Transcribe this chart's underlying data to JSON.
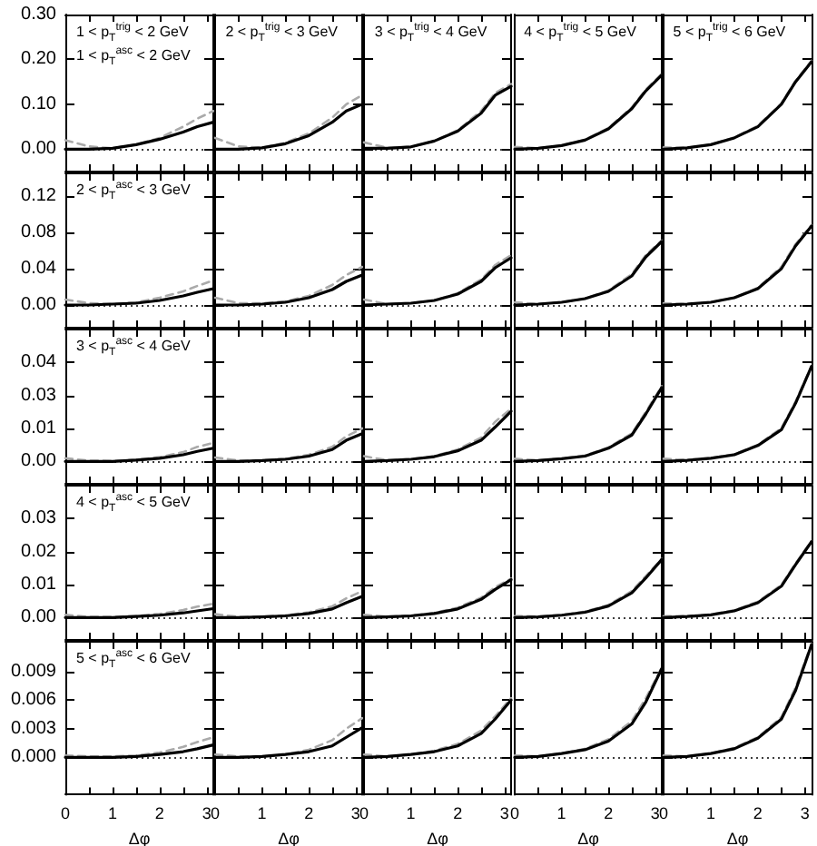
{
  "chart_data": [
    {
      "type": "line",
      "annotations": [
        "1 < p$_{T}$$^{trig}$ < 2 GeV",
        "1 < p$_{T}$$^{asc}$ < 2 GeV"
      ],
      "tick_labels": "y",
      "marker": "none",
      "line_style": "solid",
      "x": [
        0,
        0.5,
        1,
        1.5,
        2,
        2.5,
        2.8,
        3.14
      ],
      "xlim": [
        0,
        3.14
      ],
      "xticks": [
        0,
        0.5,
        1,
        1.5,
        2,
        2.5,
        3
      ],
      "ylim": [
        -0.05,
        0.3
      ],
      "yticks": [
        {
          "value": 0,
          "label": "0.00"
        },
        {
          "value": 0.1,
          "label": "0.10"
        },
        {
          "value": 0.2,
          "label": "0.20"
        },
        {
          "value": 0.3,
          "label": "0.30"
        }
      ],
      "ref_lines": [
        {
          "axis": "y",
          "value": 0,
          "line_style": "dotted"
        }
      ],
      "series": [
        {
          "color": "#aaaaaa",
          "line_style": "dashed",
          "values": [
            0.02,
            0.006,
            0.002,
            0.01,
            0.025,
            0.05,
            0.068,
            0.085
          ]
        },
        {
          "color": "#000000",
          "values": [
            0,
            0,
            0.002,
            0.01,
            0.022,
            0.038,
            0.05,
            0.06
          ]
        }
      ]
    },
    {
      "type": "line",
      "annotations": [
        "2 < p$_{T}$$^{trig}$ < 3 GeV"
      ],
      "tick_labels": false,
      "marker": "none",
      "line_style": "solid",
      "x": [
        0,
        0.5,
        1,
        1.5,
        2,
        2.5,
        2.8,
        3.14
      ],
      "xlim": [
        0,
        3.14
      ],
      "xticks": [
        0,
        0.5,
        1,
        1.5,
        2,
        2.5,
        3
      ],
      "ylim": [
        -0.05,
        0.3
      ],
      "yticks": [
        0,
        0.1,
        0.2,
        0.3
      ],
      "ref_lines": [
        {
          "axis": "y",
          "value": 0,
          "line_style": "dotted"
        }
      ],
      "series": [
        {
          "color": "#aaaaaa",
          "line_style": "dashed",
          "values": [
            0.025,
            0.006,
            0.003,
            0.014,
            0.035,
            0.07,
            0.1,
            0.12
          ]
        },
        {
          "color": "#000000",
          "values": [
            0,
            0,
            0.003,
            0.012,
            0.03,
            0.06,
            0.085,
            0.1
          ]
        }
      ]
    },
    {
      "type": "line",
      "annotations": [
        "3 < p$_{T}$$^{trig}$ < 4 GeV"
      ],
      "tick_labels": false,
      "marker": "none",
      "line_style": "solid",
      "x": [
        0,
        0.5,
        1,
        1.5,
        2,
        2.5,
        2.8,
        3.14
      ],
      "xlim": [
        0,
        3.14
      ],
      "xticks": [
        0,
        0.5,
        1,
        1.5,
        2,
        2.5,
        3
      ],
      "ylim": [
        -0.05,
        0.3
      ],
      "yticks": [
        0,
        0.1,
        0.2,
        0.3
      ],
      "ref_lines": [
        {
          "axis": "y",
          "value": 0,
          "line_style": "dotted"
        }
      ],
      "series": [
        {
          "color": "#aaaaaa",
          "line_style": "dashed",
          "values": [
            0.015,
            0.003,
            0.005,
            0.018,
            0.042,
            0.085,
            0.125,
            0.145
          ]
        },
        {
          "color": "#000000",
          "values": [
            0.002,
            0.002,
            0.005,
            0.018,
            0.04,
            0.08,
            0.12,
            0.14
          ]
        }
      ]
    },
    {
      "type": "line",
      "annotations": [
        "4 < p$_{T}$$^{trig}$ < 5 GeV"
      ],
      "tick_labels": false,
      "marker": "none",
      "line_style": "solid",
      "x": [
        0,
        0.5,
        1,
        1.5,
        2,
        2.5,
        2.8,
        3.14
      ],
      "xlim": [
        0,
        3.14
      ],
      "xticks": [
        0,
        0.5,
        1,
        1.5,
        2,
        2.5,
        3
      ],
      "ylim": [
        -0.05,
        0.3
      ],
      "yticks": [
        0,
        0.1,
        0.2,
        0.3
      ],
      "ref_lines": [
        {
          "axis": "y",
          "value": 0,
          "line_style": "dotted"
        }
      ],
      "series": [
        {
          "color": "#aaaaaa",
          "line_style": "dashed",
          "values": [
            0.005,
            0.002,
            0.008,
            0.021,
            0.047,
            0.093,
            0.133,
            0.168
          ]
        },
        {
          "color": "#000000",
          "values": [
            0,
            0.002,
            0.008,
            0.02,
            0.045,
            0.09,
            0.13,
            0.165
          ]
        }
      ]
    },
    {
      "type": "line",
      "annotations": [
        "5 < p$_{T}$$^{trig}$ < 6 GeV"
      ],
      "tick_labels": false,
      "marker": "none",
      "line_style": "solid",
      "x": [
        0,
        0.5,
        1,
        1.5,
        2,
        2.5,
        2.8,
        3.14
      ],
      "xlim": [
        0,
        3.14
      ],
      "xticks": [
        0,
        0.5,
        1,
        1.5,
        2,
        2.5,
        3
      ],
      "ylim": [
        -0.05,
        0.3
      ],
      "yticks": [
        0,
        0.1,
        0.2,
        0.3
      ],
      "ref_lines": [
        {
          "axis": "y",
          "value": 0,
          "line_style": "dotted"
        }
      ],
      "series": [
        {
          "color": "#aaaaaa",
          "line_style": "dashed",
          "values": [
            0.004,
            0.003,
            0.01,
            0.026,
            0.052,
            0.102,
            0.152,
            0.197
          ]
        },
        {
          "color": "#000000",
          "values": [
            0,
            0.003,
            0.01,
            0.025,
            0.05,
            0.1,
            0.15,
            0.195
          ]
        }
      ]
    },
    {
      "type": "line",
      "annotations": [
        "2 < p$_{T}$$^{asc}$ < 3 GeV"
      ],
      "tick_labels": "y",
      "marker": "none",
      "line_style": "solid",
      "x": [
        0,
        0.5,
        1,
        1.5,
        2,
        2.5,
        2.8,
        3.14
      ],
      "xlim": [
        0,
        3.14
      ],
      "xticks": [
        0,
        0.5,
        1,
        1.5,
        2,
        2.5,
        3
      ],
      "ylim": [
        -0.025,
        0.145
      ],
      "yticks": [
        {
          "value": 0,
          "label": "0.00"
        },
        {
          "value": 0.04,
          "label": "0.04"
        },
        {
          "value": 0.08,
          "label": "0.08"
        },
        {
          "value": 0.12,
          "label": "0.12"
        }
      ],
      "ref_lines": [
        {
          "axis": "y",
          "value": 0,
          "line_style": "dotted"
        }
      ],
      "series": [
        {
          "color": "#aaaaaa",
          "line_style": "dashed",
          "values": [
            0.006,
            0.002,
            0.001,
            0.003,
            0.008,
            0.015,
            0.021,
            0.027
          ]
        },
        {
          "color": "#000000",
          "values": [
            0,
            0,
            0.001,
            0.002,
            0.005,
            0.01,
            0.014,
            0.018
          ]
        }
      ]
    },
    {
      "type": "line",
      "tick_labels": false,
      "marker": "none",
      "line_style": "solid",
      "x": [
        0,
        0.5,
        1,
        1.5,
        2,
        2.5,
        2.8,
        3.14
      ],
      "xlim": [
        0,
        3.14
      ],
      "xticks": [
        0,
        0.5,
        1,
        1.5,
        2,
        2.5,
        3
      ],
      "ylim": [
        -0.025,
        0.145
      ],
      "yticks": [
        0,
        0.04,
        0.08,
        0.12
      ],
      "ref_lines": [
        {
          "axis": "y",
          "value": 0,
          "line_style": "dotted"
        }
      ],
      "series": [
        {
          "color": "#aaaaaa",
          "line_style": "dashed",
          "values": [
            0.008,
            0.002,
            0.002,
            0.004,
            0.01,
            0.022,
            0.033,
            0.042
          ]
        },
        {
          "color": "#000000",
          "values": [
            0,
            0,
            0.001,
            0.003,
            0.008,
            0.017,
            0.026,
            0.033
          ]
        }
      ]
    },
    {
      "type": "line",
      "tick_labels": false,
      "marker": "none",
      "line_style": "solid",
      "x": [
        0,
        0.5,
        1,
        1.5,
        2,
        2.5,
        2.8,
        3.14
      ],
      "xlim": [
        0,
        3.14
      ],
      "xticks": [
        0,
        0.5,
        1,
        1.5,
        2,
        2.5,
        3
      ],
      "ylim": [
        -0.025,
        0.145
      ],
      "yticks": [
        0,
        0.04,
        0.08,
        0.12
      ],
      "ref_lines": [
        {
          "axis": "y",
          "value": 0,
          "line_style": "dotted"
        }
      ],
      "series": [
        {
          "color": "#aaaaaa",
          "line_style": "dashed",
          "values": [
            0.006,
            0.001,
            0.002,
            0.005,
            0.013,
            0.028,
            0.044,
            0.055
          ]
        },
        {
          "color": "#000000",
          "values": [
            0,
            0.001,
            0.002,
            0.005,
            0.012,
            0.026,
            0.041,
            0.052
          ]
        }
      ]
    },
    {
      "type": "line",
      "tick_labels": false,
      "marker": "none",
      "line_style": "solid",
      "x": [
        0,
        0.5,
        1,
        1.5,
        2,
        2.5,
        2.8,
        3.14
      ],
      "xlim": [
        0,
        3.14
      ],
      "xticks": [
        0,
        0.5,
        1,
        1.5,
        2,
        2.5,
        3
      ],
      "ylim": [
        -0.025,
        0.145
      ],
      "yticks": [
        0,
        0.04,
        0.08,
        0.12
      ],
      "ref_lines": [
        {
          "axis": "y",
          "value": 0,
          "line_style": "dotted"
        }
      ],
      "series": [
        {
          "color": "#aaaaaa",
          "line_style": "dashed",
          "values": [
            0.003,
            0.001,
            0.003,
            0.007,
            0.016,
            0.034,
            0.055,
            0.071
          ]
        },
        {
          "color": "#000000",
          "values": [
            0,
            0.001,
            0.003,
            0.007,
            0.015,
            0.032,
            0.053,
            0.07
          ]
        }
      ]
    },
    {
      "type": "line",
      "tick_labels": false,
      "marker": "none",
      "line_style": "solid",
      "x": [
        0,
        0.5,
        1,
        1.5,
        2,
        2.5,
        2.8,
        3.14
      ],
      "xlim": [
        0,
        3.14
      ],
      "xticks": [
        0,
        0.5,
        1,
        1.5,
        2,
        2.5,
        3
      ],
      "ylim": [
        -0.025,
        0.145
      ],
      "yticks": [
        0,
        0.04,
        0.08,
        0.12
      ],
      "ref_lines": [
        {
          "axis": "y",
          "value": 0,
          "line_style": "dotted"
        }
      ],
      "series": [
        {
          "color": "#aaaaaa",
          "line_style": "dashed",
          "values": [
            0.002,
            0.001,
            0.003,
            0.008,
            0.019,
            0.042,
            0.067,
            0.088
          ]
        },
        {
          "color": "#000000",
          "values": [
            0,
            0.001,
            0.003,
            0.008,
            0.018,
            0.04,
            0.065,
            0.087
          ]
        }
      ]
    },
    {
      "type": "line",
      "annotations": [
        "3 < p$_{T}$$^{asc}$ < 4 GeV"
      ],
      "tick_labels": "y",
      "marker": "none",
      "line_style": "solid",
      "x": [
        0,
        0.5,
        1,
        1.5,
        2,
        2.5,
        2.8,
        3.14
      ],
      "xlim": [
        0,
        3.14
      ],
      "xticks": [
        0,
        0.5,
        1,
        1.5,
        2,
        2.5,
        3
      ],
      "ylim": [
        -0.0085,
        0.05
      ],
      "yticks": [
        {
          "value": 0,
          "label": "0.00"
        },
        {
          "value": 0.0125,
          "label": "0.01"
        },
        {
          "value": 0.025,
          "label": "0.03"
        },
        {
          "value": 0.0375,
          "label": "0.04"
        }
      ],
      "ref_lines": [
        {
          "axis": "y",
          "value": 0,
          "line_style": "dotted"
        }
      ],
      "series": [
        {
          "color": "#aaaaaa",
          "line_style": "dashed",
          "values": [
            0.0012,
            0.0003,
            0.0002,
            0.0006,
            0.0016,
            0.0035,
            0.0055,
            0.007
          ]
        },
        {
          "color": "#000000",
          "values": [
            0,
            0,
            0,
            0.0005,
            0.0012,
            0.0025,
            0.0038,
            0.005
          ]
        }
      ]
    },
    {
      "type": "line",
      "tick_labels": false,
      "marker": "none",
      "line_style": "solid",
      "x": [
        0,
        0.5,
        1,
        1.5,
        2,
        2.5,
        2.8,
        3.14
      ],
      "xlim": [
        0,
        3.14
      ],
      "xticks": [
        0,
        0.5,
        1,
        1.5,
        2,
        2.5,
        3
      ],
      "ylim": [
        -0.0085,
        0.05
      ],
      "yticks": [
        0,
        0.0125,
        0.025,
        0.0375
      ],
      "ref_lines": [
        {
          "axis": "y",
          "value": 0,
          "line_style": "dotted"
        }
      ],
      "series": [
        {
          "color": "#aaaaaa",
          "line_style": "dashed",
          "values": [
            0.0015,
            0.0003,
            0.0004,
            0.001,
            0.0025,
            0.0055,
            0.0095,
            0.0125
          ]
        },
        {
          "color": "#000000",
          "values": [
            0,
            0,
            0.0003,
            0.0008,
            0.002,
            0.0045,
            0.008,
            0.0105
          ]
        }
      ]
    },
    {
      "type": "line",
      "tick_labels": false,
      "marker": "none",
      "line_style": "solid",
      "x": [
        0,
        0.5,
        1,
        1.5,
        2,
        2.5,
        2.8,
        3.14
      ],
      "xlim": [
        0,
        3.14
      ],
      "xticks": [
        0,
        0.5,
        1,
        1.5,
        2,
        2.5,
        3
      ],
      "ylim": [
        -0.0085,
        0.05
      ],
      "yticks": [
        0,
        0.0125,
        0.025,
        0.0375
      ],
      "ref_lines": [
        {
          "axis": "y",
          "value": 0,
          "line_style": "dotted"
        }
      ],
      "series": [
        {
          "color": "#aaaaaa",
          "line_style": "dashed",
          "values": [
            0.002,
            0.0004,
            0.0009,
            0.002,
            0.0045,
            0.009,
            0.015,
            0.02
          ]
        },
        {
          "color": "#000000",
          "values": [
            0,
            0.0003,
            0.0008,
            0.0018,
            0.004,
            0.008,
            0.013,
            0.019
          ]
        }
      ]
    },
    {
      "type": "line",
      "tick_labels": false,
      "marker": "none",
      "line_style": "solid",
      "x": [
        0,
        0.5,
        1,
        1.5,
        2,
        2.5,
        2.8,
        3.14
      ],
      "xlim": [
        0,
        3.14
      ],
      "xticks": [
        0,
        0.5,
        1,
        1.5,
        2,
        2.5,
        3
      ],
      "ylim": [
        -0.0085,
        0.05
      ],
      "yticks": [
        0,
        0.0125,
        0.025,
        0.0375
      ],
      "ref_lines": [
        {
          "axis": "y",
          "value": 0,
          "line_style": "dotted"
        }
      ],
      "series": [
        {
          "color": "#aaaaaa",
          "line_style": "dashed",
          "values": [
            0.001,
            0.0004,
            0.0011,
            0.0022,
            0.0053,
            0.0106,
            0.0188,
            0.0285
          ]
        },
        {
          "color": "#000000",
          "values": [
            0,
            0.0003,
            0.001,
            0.002,
            0.005,
            0.01,
            0.018,
            0.028
          ]
        }
      ]
    },
    {
      "type": "line",
      "tick_labels": false,
      "marker": "none",
      "line_style": "solid",
      "x": [
        0,
        0.5,
        1,
        1.5,
        2,
        2.5,
        2.8,
        3.14
      ],
      "xlim": [
        0,
        3.14
      ],
      "xticks": [
        0,
        0.5,
        1,
        1.5,
        2,
        2.5,
        3
      ],
      "ylim": [
        -0.0085,
        0.05
      ],
      "yticks": [
        0,
        0.0125,
        0.025,
        0.0375
      ],
      "ref_lines": [
        {
          "axis": "y",
          "value": 0,
          "line_style": "dotted"
        }
      ],
      "series": [
        {
          "color": "#aaaaaa",
          "line_style": "dashed",
          "values": [
            0.001,
            0.0005,
            0.0013,
            0.0027,
            0.0063,
            0.0126,
            0.0226,
            0.0362
          ]
        },
        {
          "color": "#000000",
          "values": [
            0,
            0.0004,
            0.0012,
            0.0025,
            0.006,
            0.012,
            0.022,
            0.036
          ]
        }
      ]
    },
    {
      "type": "line",
      "annotations": [
        "4 < p$_{T}$$^{asc}$ < 5 GeV"
      ],
      "tick_labels": "y",
      "marker": "none",
      "line_style": "solid",
      "x": [
        0,
        0.5,
        1,
        1.5,
        2,
        2.5,
        2.8,
        3.14
      ],
      "xlim": [
        0,
        3.14
      ],
      "xticks": [
        0,
        0.5,
        1,
        1.5,
        2,
        2.5,
        3
      ],
      "ylim": [
        -0.0068,
        0.04
      ],
      "yticks": [
        {
          "value": 0,
          "label": "0.00"
        },
        {
          "value": 0.01,
          "label": "0.01"
        },
        {
          "value": 0.02,
          "label": "0.02"
        },
        {
          "value": 0.03,
          "label": "0.03"
        }
      ],
      "ref_lines": [
        {
          "axis": "y",
          "value": 0,
          "line_style": "dotted"
        }
      ],
      "series": [
        {
          "color": "#aaaaaa",
          "line_style": "dashed",
          "values": [
            0.0008,
            0.0002,
            0.0002,
            0.0005,
            0.0011,
            0.0023,
            0.0033,
            0.0042
          ]
        },
        {
          "color": "#000000",
          "values": [
            0,
            0,
            0,
            0.0003,
            0.0007,
            0.0014,
            0.002,
            0.0027
          ]
        }
      ]
    },
    {
      "type": "line",
      "tick_labels": false,
      "marker": "none",
      "line_style": "solid",
      "x": [
        0,
        0.5,
        1,
        1.5,
        2,
        2.5,
        2.8,
        3.14
      ],
      "xlim": [
        0,
        3.14
      ],
      "xticks": [
        0,
        0.5,
        1,
        1.5,
        2,
        2.5,
        3
      ],
      "ylim": [
        -0.0068,
        0.04
      ],
      "yticks": [
        0,
        0.01,
        0.02,
        0.03
      ],
      "ref_lines": [
        {
          "axis": "y",
          "value": 0,
          "line_style": "dotted"
        }
      ],
      "series": [
        {
          "color": "#aaaaaa",
          "line_style": "dashed",
          "values": [
            0.001,
            0.0002,
            0.0003,
            0.0007,
            0.0016,
            0.0034,
            0.0058,
            0.008
          ]
        },
        {
          "color": "#000000",
          "values": [
            0,
            0,
            0.0002,
            0.0005,
            0.0012,
            0.0026,
            0.0045,
            0.0064
          ]
        }
      ]
    },
    {
      "type": "line",
      "tick_labels": false,
      "marker": "none",
      "line_style": "solid",
      "x": [
        0,
        0.5,
        1,
        1.5,
        2,
        2.5,
        2.8,
        3.14
      ],
      "xlim": [
        0,
        3.14
      ],
      "xticks": [
        0,
        0.5,
        1,
        1.5,
        2,
        2.5,
        3
      ],
      "ylim": [
        -0.0068,
        0.04
      ],
      "yticks": [
        0,
        0.01,
        0.02,
        0.03
      ],
      "ref_lines": [
        {
          "axis": "y",
          "value": 0,
          "line_style": "dotted"
        }
      ],
      "series": [
        {
          "color": "#aaaaaa",
          "line_style": "dashed",
          "values": [
            0.0008,
            0.0003,
            0.0006,
            0.0014,
            0.003,
            0.006,
            0.0092,
            0.0118
          ]
        },
        {
          "color": "#000000",
          "values": [
            0,
            0.0002,
            0.0005,
            0.0012,
            0.0026,
            0.0055,
            0.0085,
            0.0115
          ]
        }
      ]
    },
    {
      "type": "line",
      "tick_labels": false,
      "marker": "none",
      "line_style": "solid",
      "x": [
        0,
        0.5,
        1,
        1.5,
        2,
        2.5,
        2.8,
        3.14
      ],
      "xlim": [
        0,
        3.14
      ],
      "xticks": [
        0,
        0.5,
        1,
        1.5,
        2,
        2.5,
        3
      ],
      "ylim": [
        -0.0068,
        0.04
      ],
      "yticks": [
        0,
        0.01,
        0.02,
        0.03
      ],
      "ref_lines": [
        {
          "axis": "y",
          "value": 0,
          "line_style": "dotted"
        }
      ],
      "series": [
        {
          "color": "#aaaaaa",
          "line_style": "dashed",
          "values": [
            0.0005,
            0.0003,
            0.0008,
            0.0018,
            0.0038,
            0.008,
            0.0126,
            0.0178
          ]
        },
        {
          "color": "#000000",
          "values": [
            0,
            0.0002,
            0.0007,
            0.0016,
            0.0035,
            0.0075,
            0.012,
            0.0176
          ]
        }
      ]
    },
    {
      "type": "line",
      "tick_labels": false,
      "marker": "none",
      "line_style": "solid",
      "x": [
        0,
        0.5,
        1,
        1.5,
        2,
        2.5,
        2.8,
        3.14
      ],
      "xlim": [
        0,
        3.14
      ],
      "xticks": [
        0,
        0.5,
        1,
        1.5,
        2,
        2.5,
        3
      ],
      "ylim": [
        -0.0068,
        0.04
      ],
      "yticks": [
        0,
        0.01,
        0.02,
        0.03
      ],
      "ref_lines": [
        {
          "axis": "y",
          "value": 0,
          "line_style": "dotted"
        }
      ],
      "series": [
        {
          "color": "#aaaaaa",
          "line_style": "dashed",
          "values": [
            0.0004,
            0.0004,
            0.0009,
            0.0022,
            0.0048,
            0.0099,
            0.0164,
            0.0232
          ]
        },
        {
          "color": "#000000",
          "values": [
            0,
            0.0003,
            0.0008,
            0.002,
            0.0045,
            0.0095,
            0.016,
            0.023
          ]
        }
      ]
    },
    {
      "type": "line",
      "annotations": [
        "5 < p$_{T}$$^{asc}$ < 6 GeV"
      ],
      "xlabel": "Δφ",
      "marker": "none",
      "line_style": "solid",
      "x": [
        0,
        0.5,
        1,
        1.5,
        2,
        2.5,
        2.8,
        3.14
      ],
      "xlim": [
        0,
        3.14
      ],
      "xticks": [
        0,
        {
          "value": 0.5,
          "label": null
        },
        1,
        {
          "value": 1.5,
          "label": null
        },
        2,
        {
          "value": 2.5,
          "label": null
        },
        3
      ],
      "ylim": [
        -0.0039,
        0.0121
      ],
      "yticks": [
        {
          "value": 0,
          "label": "0.000"
        },
        {
          "value": 0.003,
          "label": "0.003"
        },
        {
          "value": 0.006,
          "label": "0.006"
        },
        {
          "value": 0.009,
          "label": "0.009"
        }
      ],
      "ref_lines": [
        {
          "axis": "y",
          "value": 0,
          "line_style": "dotted"
        }
      ],
      "series": [
        {
          "color": "#aaaaaa",
          "line_style": "dashed",
          "values": [
            0.0002,
            0.0001,
            0.0001,
            0.0002,
            0.0005,
            0.0011,
            0.0016,
            0.0021
          ]
        },
        {
          "color": "#000000",
          "values": [
            0,
            0,
            0,
            0.0001,
            0.0003,
            0.0006,
            0.0009,
            0.0013
          ]
        }
      ]
    },
    {
      "type": "line",
      "xlabel": "Δφ",
      "tick_labels": "x",
      "marker": "none",
      "line_style": "solid",
      "x": [
        0,
        0.5,
        1,
        1.5,
        2,
        2.5,
        2.8,
        3.14
      ],
      "xlim": [
        0,
        3.14
      ],
      "xticks": [
        0,
        {
          "value": 0.5,
          "label": null
        },
        1,
        {
          "value": 1.5,
          "label": null
        },
        2,
        {
          "value": 2.5,
          "label": null
        },
        3
      ],
      "ylim": [
        -0.0039,
        0.0121
      ],
      "yticks": [
        0,
        0.003,
        0.006,
        0.009
      ],
      "ref_lines": [
        {
          "axis": "y",
          "value": 0,
          "line_style": "dotted"
        }
      ],
      "series": [
        {
          "color": "#aaaaaa",
          "line_style": "dashed",
          "values": [
            0.0003,
            0.0001,
            0.0001,
            0.0003,
            0.0008,
            0.0018,
            0.003,
            0.0041
          ]
        },
        {
          "color": "#000000",
          "values": [
            0,
            0,
            0.0001,
            0.0003,
            0.0006,
            0.0012,
            0.0021,
            0.0031
          ]
        }
      ]
    },
    {
      "type": "line",
      "xlabel": "Δφ",
      "tick_labels": "x",
      "marker": "none",
      "line_style": "solid",
      "x": [
        0,
        0.5,
        1,
        1.5,
        2,
        2.5,
        2.8,
        3.14
      ],
      "xlim": [
        0,
        3.14
      ],
      "xticks": [
        0,
        {
          "value": 0.5,
          "label": null
        },
        1,
        {
          "value": 1.5,
          "label": null
        },
        2,
        {
          "value": 2.5,
          "label": null
        },
        3
      ],
      "ylim": [
        -0.0039,
        0.0121
      ],
      "yticks": [
        0,
        0.003,
        0.006,
        0.009
      ],
      "ref_lines": [
        {
          "axis": "y",
          "value": 0,
          "line_style": "dotted"
        }
      ],
      "series": [
        {
          "color": "#aaaaaa",
          "line_style": "dashed",
          "values": [
            0.0003,
            0.0001,
            0.0003,
            0.0007,
            0.0014,
            0.0028,
            0.0043,
            0.0062
          ]
        },
        {
          "color": "#000000",
          "values": [
            0,
            0.0001,
            0.0003,
            0.0006,
            0.0012,
            0.0025,
            0.004,
            0.006
          ]
        }
      ]
    },
    {
      "type": "line",
      "xlabel": "Δφ",
      "tick_labels": "x",
      "marker": "none",
      "line_style": "solid",
      "x": [
        0,
        0.5,
        1,
        1.5,
        2,
        2.5,
        2.8,
        3.14
      ],
      "xlim": [
        0,
        3.14
      ],
      "xticks": [
        0,
        {
          "value": 0.5,
          "label": null
        },
        1,
        {
          "value": 1.5,
          "label": null
        },
        2,
        {
          "value": 2.5,
          "label": null
        },
        3
      ],
      "ylim": [
        -0.0039,
        0.0121
      ],
      "yticks": [
        0,
        0.003,
        0.006,
        0.009
      ],
      "ref_lines": [
        {
          "axis": "y",
          "value": 0,
          "line_style": "dotted"
        }
      ],
      "series": [
        {
          "color": "#aaaaaa",
          "line_style": "dashed",
          "values": [
            0.0002,
            0.0001,
            0.0004,
            0.0009,
            0.0019,
            0.0038,
            0.0062,
            0.0094
          ]
        },
        {
          "color": "#000000",
          "values": [
            0,
            0.0001,
            0.0004,
            0.0008,
            0.0017,
            0.0035,
            0.0058,
            0.0093
          ]
        }
      ]
    },
    {
      "type": "line",
      "xlabel": "Δφ",
      "tick_labels": "x",
      "marker": "none",
      "line_style": "solid",
      "x": [
        0,
        0.5,
        1,
        1.5,
        2,
        2.5,
        2.8,
        3.14
      ],
      "xlim": [
        0,
        3.14
      ],
      "xticks": [
        0,
        {
          "value": 0.5,
          "label": null
        },
        1,
        {
          "value": 1.5,
          "label": null
        },
        2,
        {
          "value": 2.5,
          "label": null
        },
        3
      ],
      "ylim": [
        -0.0039,
        0.0121
      ],
      "yticks": [
        0,
        0.003,
        0.006,
        0.009
      ],
      "ref_lines": [
        {
          "axis": "y",
          "value": 0,
          "line_style": "dotted"
        }
      ],
      "series": [
        {
          "color": "#aaaaaa",
          "line_style": "dashed",
          "values": [
            0.0002,
            0.0001,
            0.0004,
            0.001,
            0.0021,
            0.0042,
            0.0073,
            0.0119
          ]
        },
        {
          "color": "#000000",
          "values": [
            0,
            0.0001,
            0.0004,
            0.0009,
            0.002,
            0.004,
            0.007,
            0.0118
          ]
        }
      ]
    }
  ]
}
